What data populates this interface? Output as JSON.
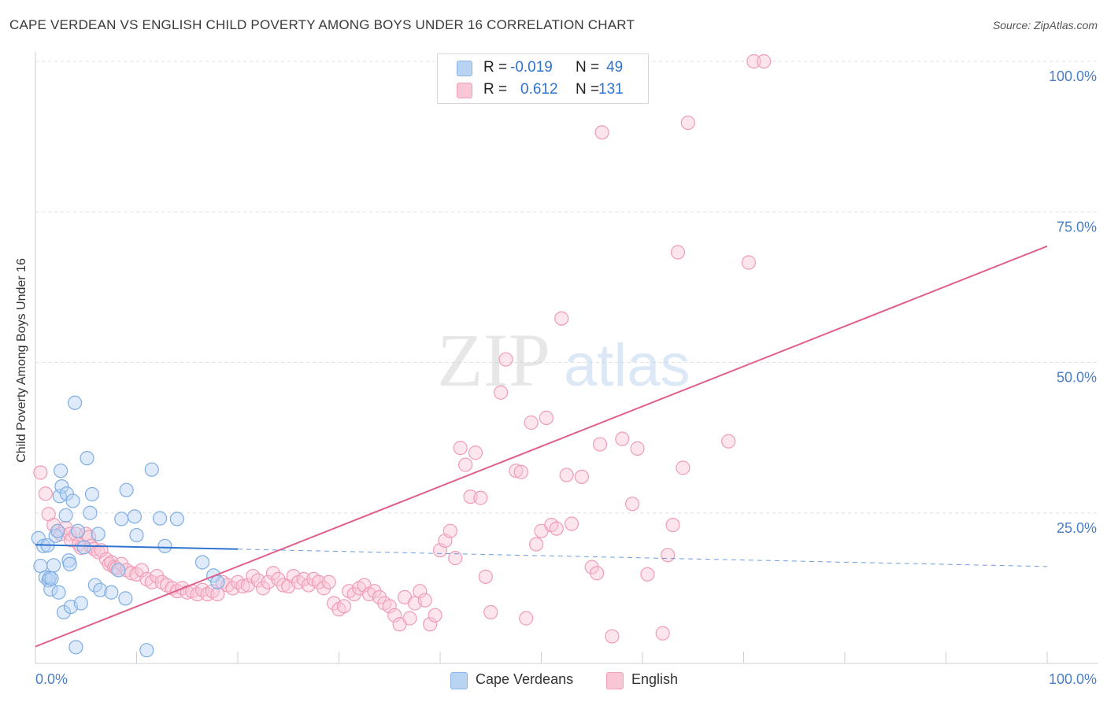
{
  "header": {
    "title": "CAPE VERDEAN VS ENGLISH CHILD POVERTY AMONG BOYS UNDER 16 CORRELATION CHART",
    "source": "Source: ZipAtlas.com"
  },
  "watermark": {
    "zip": "ZIP",
    "atlas": "atlas"
  },
  "legend_top": {
    "rows": [
      {
        "r_label": "R =",
        "r_value": "-0.019",
        "n_label": "N =",
        "n_value": "49",
        "color": "#8ab4e6",
        "fill": "#b9d3f3"
      },
      {
        "r_label": "R =",
        "r_value": "0.612",
        "n_label": "N =",
        "n_value": "131",
        "color": "#f2a0ba",
        "fill": "#f8c6d5"
      }
    ]
  },
  "legend_bottom": {
    "items": [
      {
        "label": "Cape Verdeans",
        "color": "#b9d3f3",
        "border": "#8ab4e6"
      },
      {
        "label": "English",
        "color": "#f8c6d5",
        "border": "#f2a0ba"
      }
    ]
  },
  "chart_data": {
    "type": "scatter",
    "title": "CAPE VERDEAN VS ENGLISH CHILD POVERTY AMONG BOYS UNDER 16 CORRELATION CHART",
    "xlabel": "",
    "ylabel": "Child Poverty Among Boys Under 16",
    "xlim": [
      0,
      100
    ],
    "ylim": [
      0,
      100
    ],
    "x_tick_labels": [
      "0.0%",
      "100.0%"
    ],
    "y_tick_labels": [
      "25.0%",
      "50.0%",
      "75.0%",
      "100.0%"
    ],
    "y_ticks": [
      25,
      50,
      75,
      100
    ],
    "grid": true,
    "colors": {
      "cape_verdeans": "#6fa3e0",
      "english": "#ee8fb0",
      "blue_line": "#2f73d0",
      "pink_line": "#e0608c",
      "tick_text": "#4a7ec7"
    },
    "series": [
      {
        "name": "Cape Verdeans",
        "r": -0.019,
        "n": 49,
        "trend": {
          "x0": 0,
          "y0": 19.7,
          "x1": 100,
          "y1": 16.1,
          "solid_until": 20
        },
        "points": [
          [
            0.3,
            20.8
          ],
          [
            0.5,
            16.2
          ],
          [
            0.8,
            19.5
          ],
          [
            1,
            14.3
          ],
          [
            1.2,
            19.6
          ],
          [
            1.3,
            13.8
          ],
          [
            1.4,
            14.2
          ],
          [
            1.5,
            12.3
          ],
          [
            1.6,
            14.1
          ],
          [
            1.8,
            16.3
          ],
          [
            2,
            21.2
          ],
          [
            2.2,
            22.0
          ],
          [
            2.3,
            11.8
          ],
          [
            2.4,
            27.8
          ],
          [
            2.5,
            32.0
          ],
          [
            2.6,
            29.4
          ],
          [
            2.8,
            8.5
          ],
          [
            3,
            24.6
          ],
          [
            3.1,
            28.2
          ],
          [
            3.3,
            17.1
          ],
          [
            3.4,
            16.5
          ],
          [
            3.5,
            9.4
          ],
          [
            3.7,
            27.0
          ],
          [
            3.9,
            43.3
          ],
          [
            4,
            2.7
          ],
          [
            4.5,
            10.0
          ],
          [
            4.8,
            19.3
          ],
          [
            5.1,
            34.1
          ],
          [
            5.4,
            25.0
          ],
          [
            5.6,
            28.1
          ],
          [
            5.9,
            13.0
          ],
          [
            6.4,
            12.2
          ],
          [
            7.5,
            11.8
          ],
          [
            8.2,
            15.5
          ],
          [
            8.5,
            24.0
          ],
          [
            8.9,
            10.8
          ],
          [
            9.0,
            28.8
          ],
          [
            9.8,
            24.4
          ],
          [
            10.0,
            21.3
          ],
          [
            11.0,
            2.2
          ],
          [
            11.5,
            32.2
          ],
          [
            12.3,
            24.1
          ],
          [
            12.8,
            19.5
          ],
          [
            14.0,
            24.0
          ],
          [
            16.5,
            16.8
          ],
          [
            17.6,
            14.6
          ],
          [
            18.0,
            13.5
          ],
          [
            4.2,
            22.0
          ],
          [
            6.2,
            21.5
          ]
        ]
      },
      {
        "name": "English",
        "r": 0.612,
        "n": 131,
        "trend": {
          "x0": 0,
          "y0": 2.8,
          "x1": 100,
          "y1": 69.3
        },
        "points": [
          [
            0.5,
            31.7
          ],
          [
            1,
            28.2
          ],
          [
            1.3,
            24.8
          ],
          [
            1.8,
            23.0
          ],
          [
            2.2,
            22.0
          ],
          [
            2.5,
            21.5
          ],
          [
            3,
            22.5
          ],
          [
            3.4,
            21.5
          ],
          [
            3.5,
            20.5
          ],
          [
            4,
            21.5
          ],
          [
            4.3,
            19.8
          ],
          [
            4.5,
            19.2
          ],
          [
            5,
            21.5
          ],
          [
            5.3,
            21.0
          ],
          [
            5.5,
            19.5
          ],
          [
            5.8,
            19.0
          ],
          [
            6.2,
            18.5
          ],
          [
            6.5,
            18.8
          ],
          [
            7,
            17.3
          ],
          [
            7.3,
            16.5
          ],
          [
            7.5,
            16.8
          ],
          [
            7.8,
            16.0
          ],
          [
            8,
            15.8
          ],
          [
            8.5,
            16.5
          ],
          [
            9,
            15.5
          ],
          [
            9.5,
            15.0
          ],
          [
            10,
            14.8
          ],
          [
            10.5,
            15.5
          ],
          [
            11,
            14.0
          ],
          [
            11.5,
            13.5
          ],
          [
            12,
            14.5
          ],
          [
            12.5,
            13.5
          ],
          [
            13,
            13.0
          ],
          [
            13.5,
            12.5
          ],
          [
            14,
            12.0
          ],
          [
            14.5,
            12.5
          ],
          [
            15,
            11.8
          ],
          [
            15.5,
            12.0
          ],
          [
            16,
            11.5
          ],
          [
            16.5,
            12.2
          ],
          [
            17,
            11.5
          ],
          [
            17.5,
            12.0
          ],
          [
            18,
            11.5
          ],
          [
            18.5,
            13.5
          ],
          [
            19,
            13.0
          ],
          [
            19.5,
            12.5
          ],
          [
            20,
            13.5
          ],
          [
            20.5,
            12.8
          ],
          [
            21,
            13.0
          ],
          [
            21.5,
            14.5
          ],
          [
            22,
            13.8
          ],
          [
            22.5,
            12.5
          ],
          [
            23,
            13.5
          ],
          [
            23.5,
            15.0
          ],
          [
            24,
            14.0
          ],
          [
            24.5,
            13.0
          ],
          [
            25,
            12.8
          ],
          [
            25.5,
            14.5
          ],
          [
            26,
            13.5
          ],
          [
            26.5,
            14.0
          ],
          [
            27,
            13.0
          ],
          [
            27.5,
            14.0
          ],
          [
            28,
            13.5
          ],
          [
            28.5,
            12.5
          ],
          [
            29,
            13.5
          ],
          [
            29.5,
            10.0
          ],
          [
            30,
            9.0
          ],
          [
            30.5,
            9.5
          ],
          [
            31,
            12.0
          ],
          [
            31.5,
            11.5
          ],
          [
            32,
            12.5
          ],
          [
            32.5,
            13.0
          ],
          [
            33,
            11.5
          ],
          [
            33.5,
            12.0
          ],
          [
            34,
            11.0
          ],
          [
            34.5,
            10.0
          ],
          [
            35,
            9.5
          ],
          [
            35.5,
            8.0
          ],
          [
            36,
            6.5
          ],
          [
            36.5,
            11.0
          ],
          [
            37,
            7.5
          ],
          [
            37.5,
            10.0
          ],
          [
            38,
            12.0
          ],
          [
            38.5,
            10.5
          ],
          [
            39,
            6.5
          ],
          [
            39.5,
            8.0
          ],
          [
            40,
            18.8
          ],
          [
            40.5,
            20.4
          ],
          [
            41,
            22.0
          ],
          [
            41.5,
            17.5
          ],
          [
            42,
            35.8
          ],
          [
            42.5,
            33.0
          ],
          [
            43,
            27.7
          ],
          [
            43.5,
            35.0
          ],
          [
            44,
            27.5
          ],
          [
            44.5,
            14.4
          ],
          [
            45,
            8.5
          ],
          [
            46,
            45.0
          ],
          [
            46.5,
            50.5
          ],
          [
            47.5,
            32.0
          ],
          [
            48,
            31.8
          ],
          [
            48.5,
            7.5
          ],
          [
            49,
            40.0
          ],
          [
            49.5,
            19.8
          ],
          [
            50,
            22.0
          ],
          [
            50.5,
            40.8
          ],
          [
            51,
            23.0
          ],
          [
            51.5,
            22.4
          ],
          [
            52,
            57.3
          ],
          [
            52.5,
            31.3
          ],
          [
            53,
            23.2
          ],
          [
            54,
            31.0
          ],
          [
            55,
            16.0
          ],
          [
            55.5,
            15.0
          ],
          [
            55.8,
            36.4
          ],
          [
            56,
            88.2
          ],
          [
            57,
            4.5
          ],
          [
            58,
            37.3
          ],
          [
            59,
            26.5
          ],
          [
            59.5,
            35.7
          ],
          [
            60.5,
            14.8
          ],
          [
            62,
            5.0
          ],
          [
            62.5,
            18.0
          ],
          [
            63,
            23.0
          ],
          [
            63.5,
            68.3
          ],
          [
            64,
            32.5
          ],
          [
            64.5,
            89.8
          ],
          [
            68.5,
            36.9
          ],
          [
            70.5,
            66.6
          ],
          [
            71,
            100.0
          ],
          [
            72,
            100.0
          ]
        ]
      }
    ]
  }
}
